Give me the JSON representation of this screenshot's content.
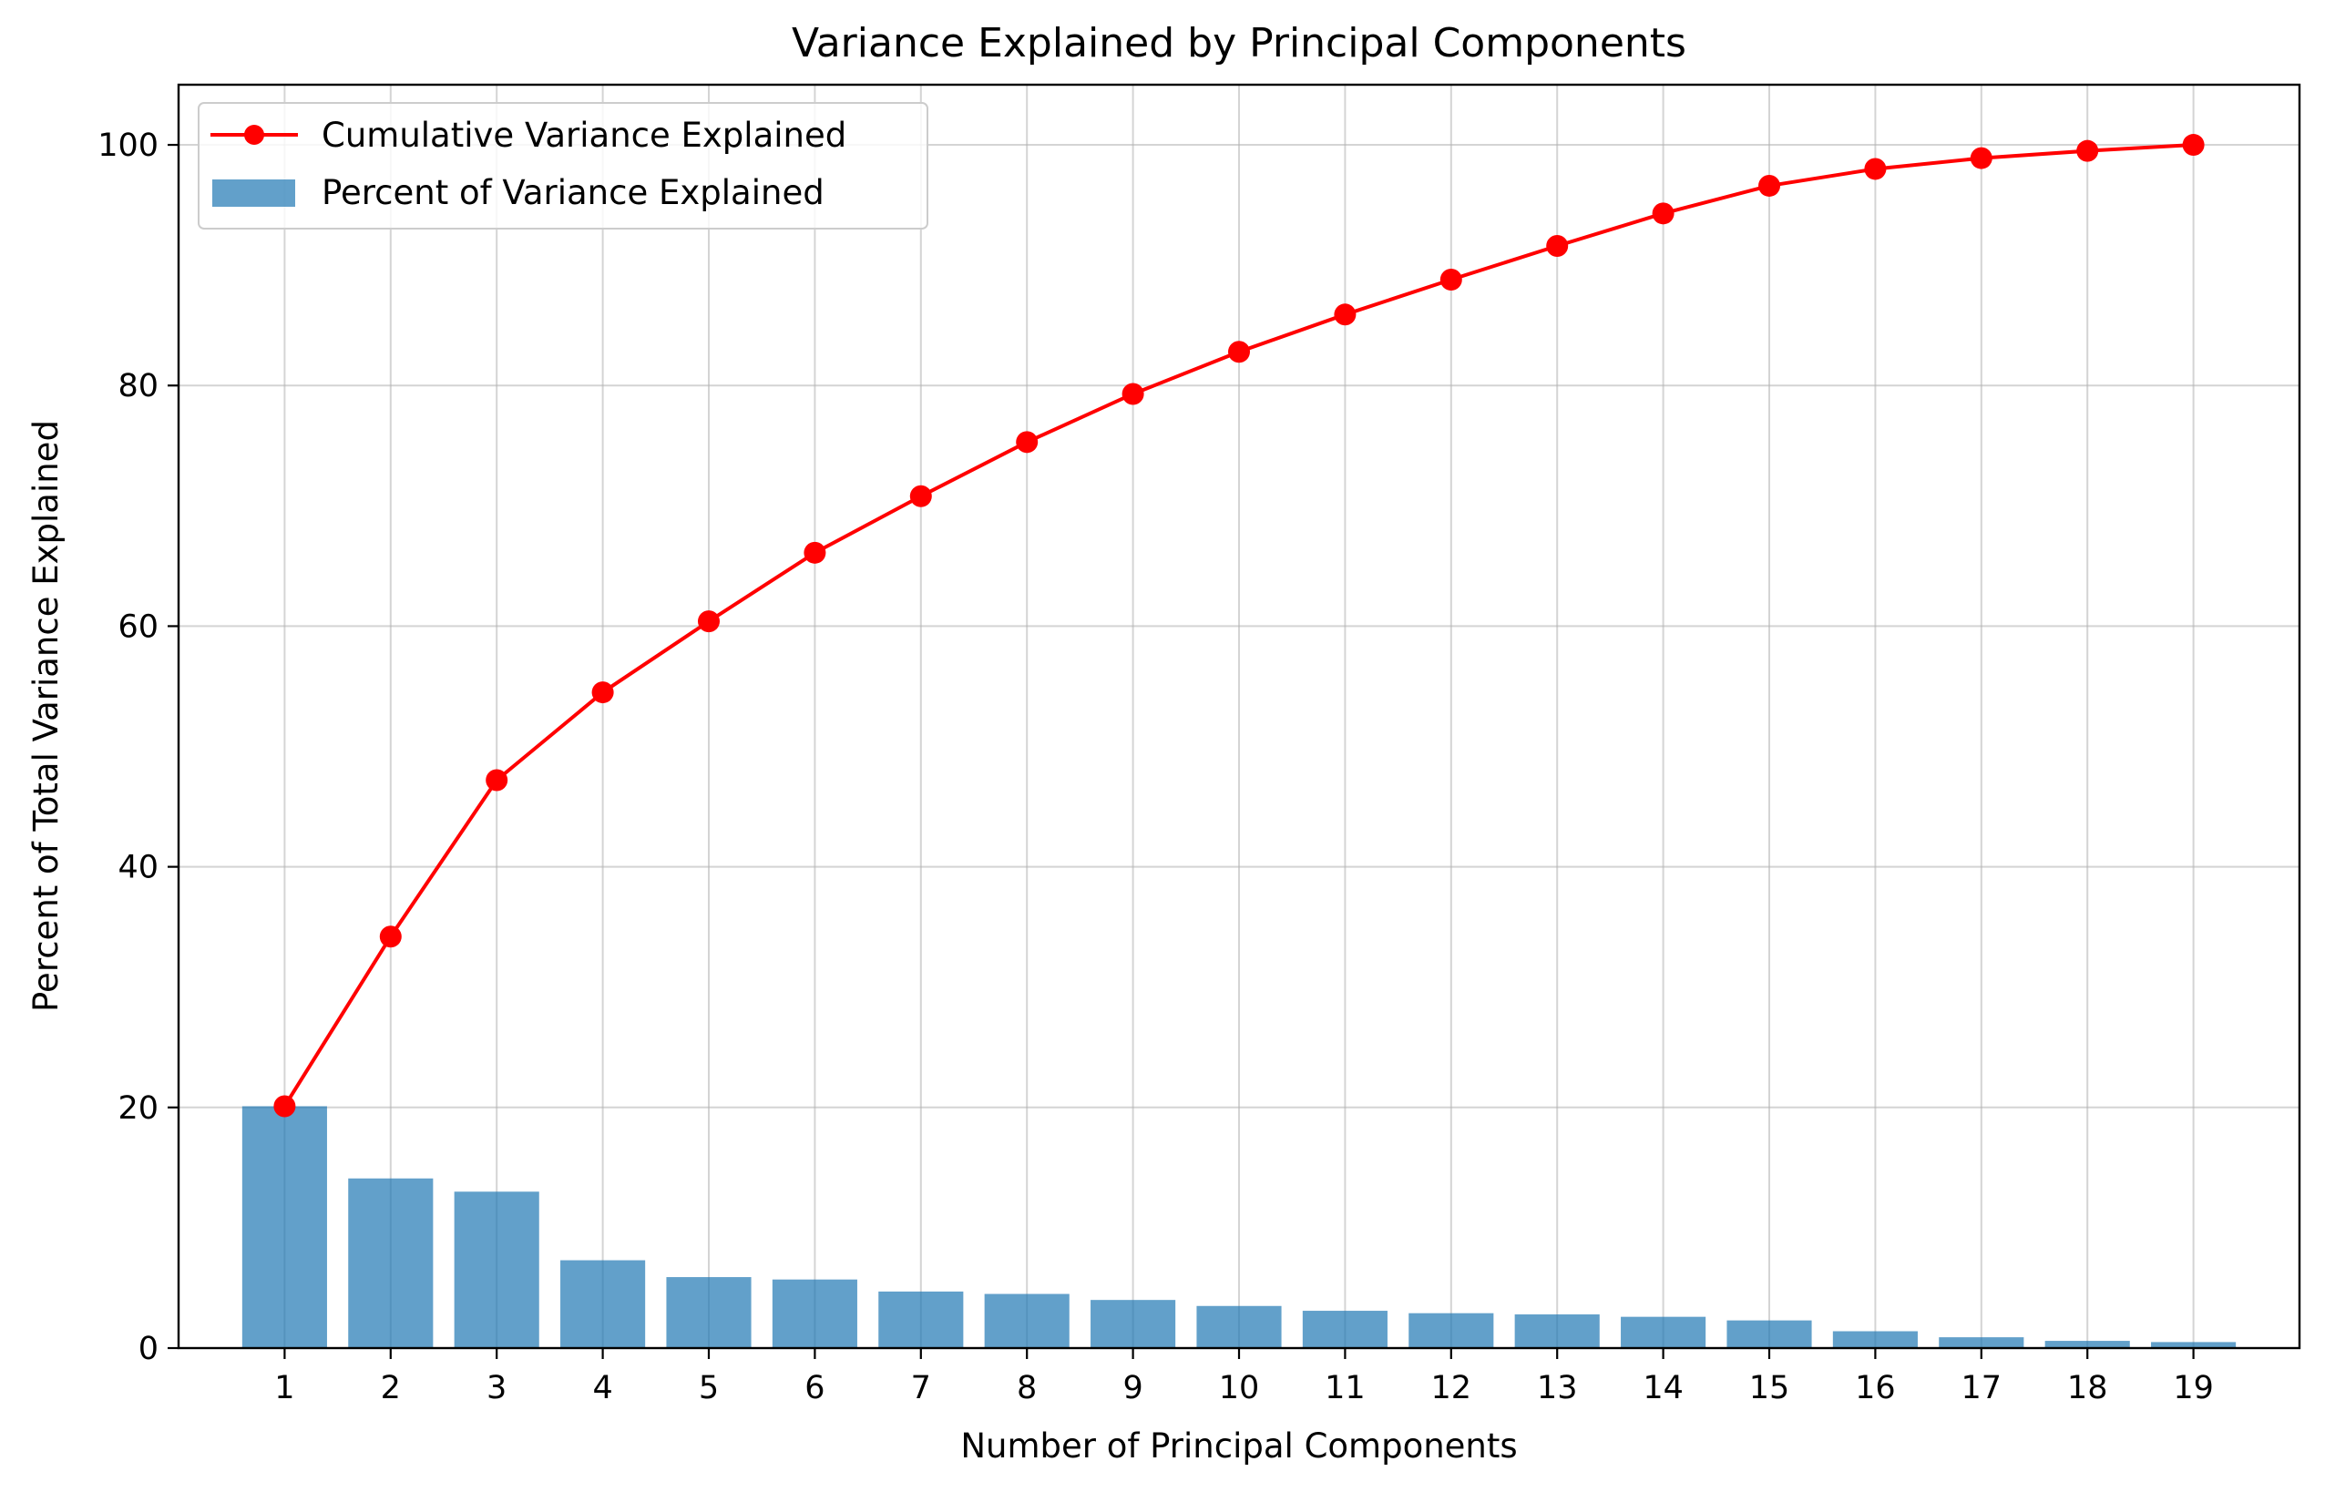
{
  "chart_data": {
    "type": "bar",
    "title": "Variance Explained by Principal Components",
    "xlabel": "Number of Principal Components",
    "ylabel": "Percent of Total Variance Explained",
    "categories": [
      1,
      2,
      3,
      4,
      5,
      6,
      7,
      8,
      9,
      10,
      11,
      12,
      13,
      14,
      15,
      16,
      17,
      18,
      19
    ],
    "xlim": [
      0,
      20
    ],
    "ylim": [
      0,
      105
    ],
    "yticks": [
      0,
      20,
      40,
      60,
      80,
      100
    ],
    "grid": true,
    "legend_position": "top-left",
    "series": [
      {
        "name": "Cumulative Variance Explained",
        "kind": "line",
        "marker": "circle",
        "color": "#ff0000",
        "values": [
          20.1,
          34.2,
          47.2,
          54.5,
          60.4,
          66.1,
          70.8,
          75.3,
          79.3,
          82.8,
          85.9,
          88.8,
          91.6,
          94.3,
          96.6,
          98.0,
          98.9,
          99.5,
          100.0
        ]
      },
      {
        "name": "Percent of Variance Explained",
        "kind": "bar",
        "color": "#1f77b4",
        "opacity": 0.7,
        "values": [
          20.1,
          14.1,
          13.0,
          7.3,
          5.9,
          5.7,
          4.7,
          4.5,
          4.0,
          3.5,
          3.1,
          2.9,
          2.8,
          2.6,
          2.3,
          1.4,
          0.9,
          0.6,
          0.5
        ]
      }
    ]
  }
}
